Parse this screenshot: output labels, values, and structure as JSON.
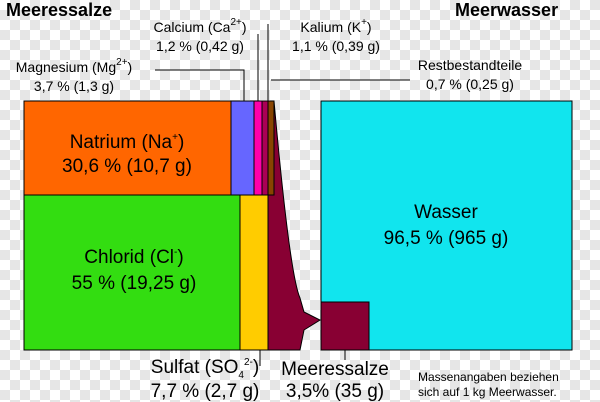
{
  "header": {
    "left_title": "Meeressalze",
    "right_title": "Meerwasser"
  },
  "salts": {
    "natrium": {
      "name": "Natrium (Na",
      "sup": "+",
      "close": ")",
      "value": "30,6 % (10,7 g)",
      "color": "#ff6600"
    },
    "chlorid": {
      "name": "Chlorid (Cl",
      "sup": "-",
      "close": ")",
      "value": "55 % (19,25 g)",
      "color": "#33dd11"
    },
    "sulfat": {
      "name": "Sulfat (SO",
      "sub": "4",
      "sup": "2-",
      "close": ")",
      "value": "7,7 % (2,7 g)",
      "color": "#ffcc00"
    },
    "magnesium": {
      "name": "Magnesium (Mg",
      "sup": "2+",
      "close": ")",
      "value": "3,7 % (1,3 g)",
      "color": "#6666ff"
    },
    "calcium": {
      "name": "Calcium (Ca",
      "sup": "2+",
      "close": ")",
      "value": "1,2 % (0,42 g)",
      "color": "#ff00aa"
    },
    "kalium": {
      "name": "Kalium (K",
      "sup": "+",
      "close": ")",
      "value": "1,1 % (0,39 g)",
      "color": "#aa0055"
    },
    "rest": {
      "name": "Restbestandteile",
      "value": "0,7 % (0,25 g)",
      "color": "#884400"
    }
  },
  "water": {
    "name": "Wasser",
    "value": "96,5 % (965 g)",
    "color": "#11e5ee"
  },
  "sea_salt": {
    "name": "Meeressalze",
    "value": "3,5% (35 g)",
    "color": "#880033"
  },
  "note": {
    "line1": "Massenangaben beziehen",
    "line2": "sich auf 1 kg Meerwasser."
  },
  "colors": {
    "funnel": "#880033",
    "border": "#000000",
    "background_checker": "#e6e6e6"
  }
}
